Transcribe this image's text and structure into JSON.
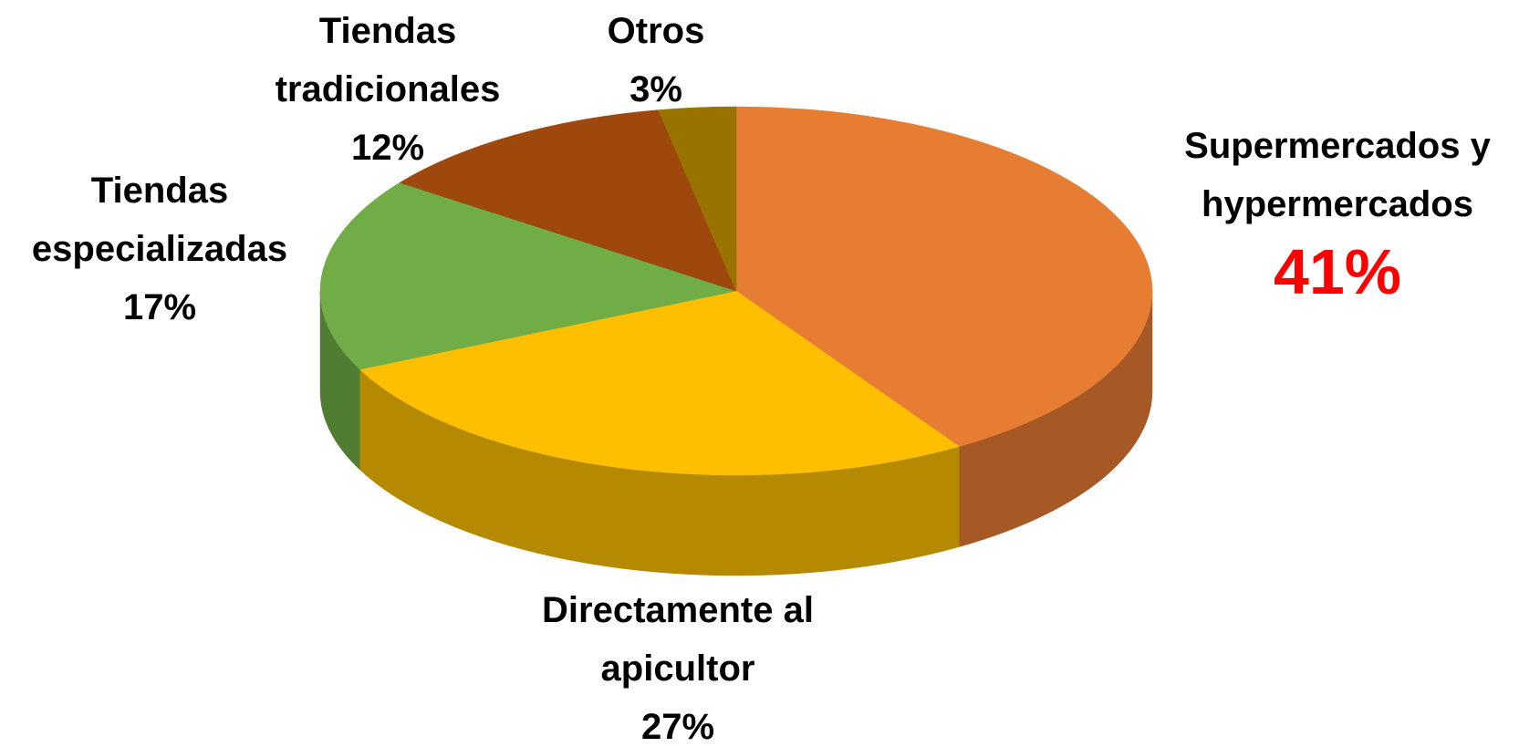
{
  "chart_data": {
    "type": "pie",
    "categories": [
      "Supermercados y hypermercados",
      "Directamente al apicultor",
      "Tiendas especializadas",
      "Tiendas tradicionales",
      "Otros"
    ],
    "values": [
      41,
      27,
      17,
      12,
      3
    ],
    "value_labels": [
      "41%",
      "27%",
      "17%",
      "12%",
      "3%"
    ],
    "colors": [
      "#e77c33",
      "#fdbf00",
      "#70ad47",
      "#9e480e",
      "#997300"
    ],
    "highlight_color": "#ff0000"
  }
}
